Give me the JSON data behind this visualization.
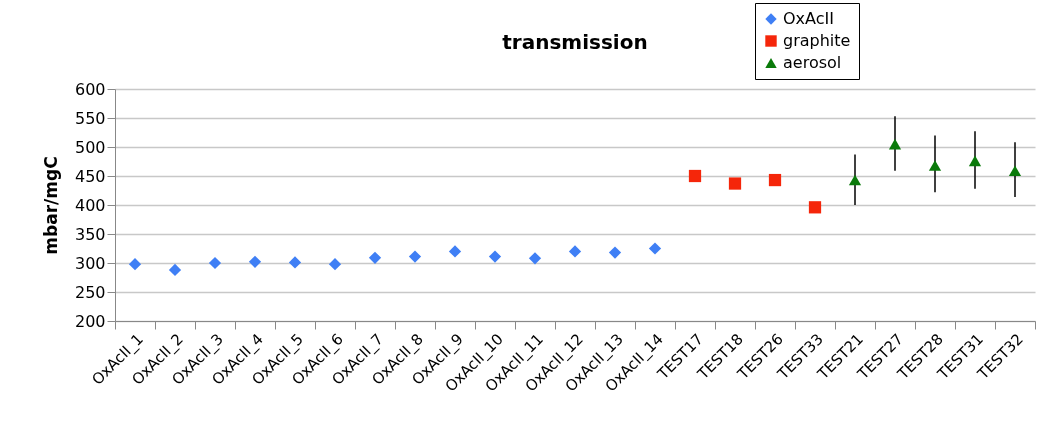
{
  "chart_data": {
    "type": "scatter",
    "title": "transmission",
    "ylabel": "mbar/mgC",
    "categories": [
      "OxAcII_1",
      "OxAcII_2",
      "OxAcII_3",
      "OxAcII_4",
      "OxAcII_5",
      "OxAcII_6",
      "OxAcII_7",
      "OxAcII_8",
      "OxAcII_9",
      "OxAcII_10",
      "OxAcII_11",
      "OxAcII_12",
      "OxAcII_13",
      "OxAcII_14",
      "TEST17",
      "TEST18",
      "TEST26",
      "TEST33",
      "TEST21",
      "TEST27",
      "TEST28",
      "TEST31",
      "TEST32"
    ],
    "series": [
      {
        "name": "OxAcII",
        "color": "#3f7ff5",
        "marker": "diamond",
        "values": [
          298,
          288,
          300,
          302,
          301,
          298,
          309,
          311,
          320,
          311,
          308,
          320,
          318,
          325,
          null,
          null,
          null,
          null,
          null,
          null,
          null,
          null,
          null
        ]
      },
      {
        "name": "graphite",
        "color": "#f5260a",
        "marker": "square",
        "values": [
          null,
          null,
          null,
          null,
          null,
          null,
          null,
          null,
          null,
          null,
          null,
          null,
          null,
          null,
          450,
          437,
          443,
          396,
          null,
          null,
          null,
          null,
          null
        ]
      },
      {
        "name": "aerosol",
        "color": "#0a7a0a",
        "marker": "triangle",
        "values": [
          null,
          null,
          null,
          null,
          null,
          null,
          null,
          null,
          null,
          null,
          null,
          null,
          null,
          null,
          null,
          null,
          null,
          null,
          443,
          505,
          468,
          476,
          459
        ],
        "errors": [
          null,
          null,
          null,
          null,
          null,
          null,
          null,
          null,
          null,
          null,
          null,
          null,
          null,
          null,
          null,
          null,
          null,
          null,
          [
            400,
            487
          ],
          [
            459,
            553
          ],
          [
            422,
            520
          ],
          [
            428,
            527
          ],
          [
            414,
            508
          ]
        ]
      }
    ],
    "ylim": [
      200,
      600
    ],
    "yticks": [
      200,
      250,
      300,
      350,
      400,
      450,
      500,
      550,
      600
    ],
    "grid": "y",
    "legend": "top right"
  }
}
